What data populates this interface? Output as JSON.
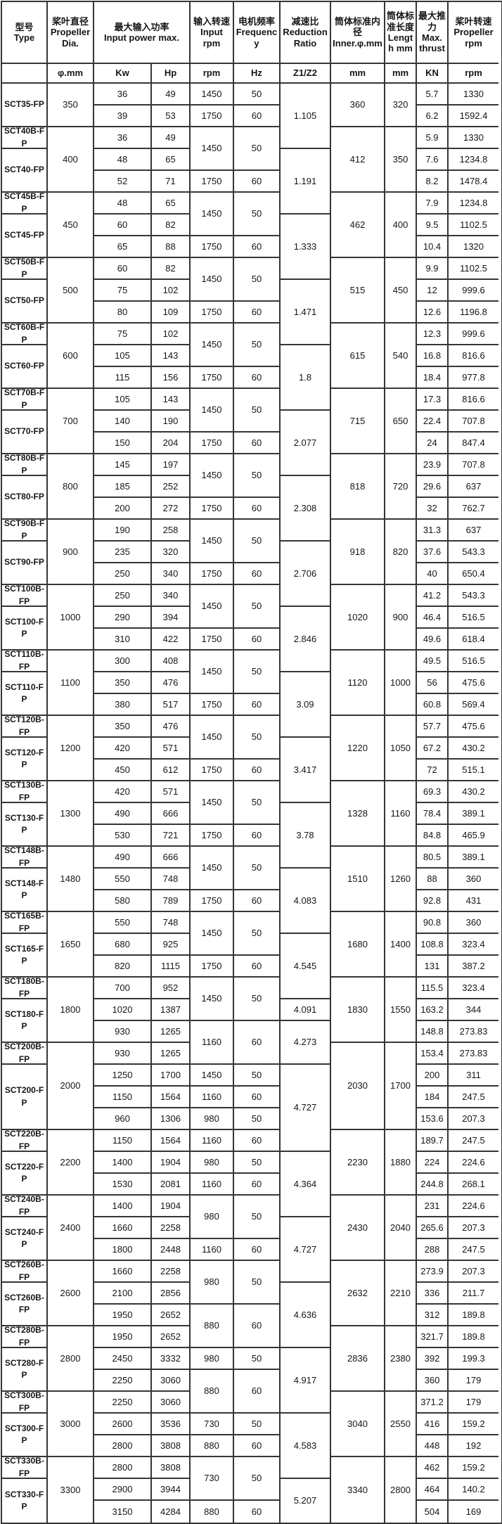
{
  "header": {
    "col_type": {
      "zh": "型号",
      "en": "Type"
    },
    "col_dia": {
      "zh": "桨叶直径",
      "en": "Propeller Dia.",
      "unit": "φ.mm"
    },
    "col_power": {
      "zh": "最大输入功率",
      "en": "Input power max.",
      "unit_kw": "Kw",
      "unit_hp": "Hp"
    },
    "col_rpm": {
      "zh": "输入转速",
      "en": "Input rpm",
      "unit": "rpm"
    },
    "col_freq": {
      "zh": "电机频率",
      "en": "Frequency",
      "unit": "Hz"
    },
    "col_ratio": {
      "zh": "减速比",
      "en": "Reduction Ratio",
      "unit": "Z1/Z2"
    },
    "col_inner": {
      "zh": "筒体标准内径",
      "en": "Inner.φ.mm",
      "unit": "mm"
    },
    "col_length": {
      "zh": "筒体标准长度",
      "en": "Length mm",
      "unit": "mm"
    },
    "col_thrust": {
      "zh": "最大推力",
      "en": "Max. thrust",
      "unit": "KN"
    },
    "col_proprpm": {
      "zh": "桨叶转速",
      "en": "Propeller rpm",
      "unit": "rpm"
    }
  },
  "table": {
    "rows": 66,
    "type_cells": [
      [
        1,
        2,
        "SCT35-FP"
      ],
      [
        3,
        1,
        "SCT40B-FP"
      ],
      [
        4,
        2,
        "SCT40-FP"
      ],
      [
        6,
        1,
        "SCT45B-FP"
      ],
      [
        7,
        2,
        "SCT45-FP"
      ],
      [
        9,
        1,
        "SCT50B-FP"
      ],
      [
        10,
        2,
        "SCT50-FP"
      ],
      [
        12,
        1,
        "SCT60B-FP"
      ],
      [
        13,
        2,
        "SCT60-FP"
      ],
      [
        15,
        1,
        "SCT70B-FP"
      ],
      [
        16,
        2,
        "SCT70-FP"
      ],
      [
        18,
        1,
        "SCT80B-FP"
      ],
      [
        19,
        2,
        "SCT80-FP"
      ],
      [
        21,
        1,
        "SCT90B-FP"
      ],
      [
        22,
        2,
        "SCT90-FP"
      ],
      [
        24,
        1,
        "SCT100B-FP"
      ],
      [
        25,
        2,
        "SCT100-FP"
      ],
      [
        27,
        1,
        "SCT110B-FP"
      ],
      [
        28,
        2,
        "SCT110-FP"
      ],
      [
        30,
        1,
        "SCT120B-FP"
      ],
      [
        31,
        2,
        "SCT120-FP"
      ],
      [
        33,
        1,
        "SCT130B-FP"
      ],
      [
        34,
        2,
        "SCT130-FP"
      ],
      [
        36,
        1,
        "SCT148B-FP"
      ],
      [
        37,
        2,
        "SCT148-FP"
      ],
      [
        39,
        1,
        "SCT165B-FP"
      ],
      [
        40,
        2,
        "SCT165-FP"
      ],
      [
        42,
        1,
        "SCT180B-FP"
      ],
      [
        43,
        2,
        "SCT180-FP"
      ],
      [
        45,
        1,
        "SCT200B-FP"
      ],
      [
        46,
        3,
        "SCT200-FP"
      ],
      [
        49,
        1,
        "SCT220B-FP"
      ],
      [
        50,
        2,
        "SCT220-FP"
      ],
      [
        52,
        1,
        "SCT240B-FP"
      ],
      [
        53,
        2,
        "SCT240-FP"
      ],
      [
        55,
        1,
        "SCT260B-FP"
      ],
      [
        56,
        2,
        "SCT260B-FP"
      ],
      [
        58,
        1,
        "SCT280B-FP"
      ],
      [
        59,
        2,
        "SCT280-FP"
      ],
      [
        61,
        1,
        "SCT300B-FP"
      ],
      [
        62,
        2,
        "SCT300-FP"
      ],
      [
        64,
        1,
        "SCT330B-FP"
      ],
      [
        65,
        2,
        "SCT330-FP"
      ]
    ],
    "dia_cells": [
      [
        1,
        2,
        "350"
      ],
      [
        3,
        3,
        "400"
      ],
      [
        6,
        3,
        "450"
      ],
      [
        9,
        3,
        "500"
      ],
      [
        12,
        3,
        "600"
      ],
      [
        15,
        3,
        "700"
      ],
      [
        18,
        3,
        "800"
      ],
      [
        21,
        3,
        "900"
      ],
      [
        24,
        3,
        "1000"
      ],
      [
        27,
        3,
        "1100"
      ],
      [
        30,
        3,
        "1200"
      ],
      [
        33,
        3,
        "1300"
      ],
      [
        36,
        3,
        "1480"
      ],
      [
        39,
        3,
        "1650"
      ],
      [
        42,
        3,
        "1800"
      ],
      [
        45,
        4,
        "2000"
      ],
      [
        49,
        3,
        "2200"
      ],
      [
        52,
        3,
        "2400"
      ],
      [
        55,
        3,
        "2600"
      ],
      [
        58,
        3,
        "2800"
      ],
      [
        61,
        3,
        "3000"
      ],
      [
        64,
        3,
        "3300"
      ]
    ],
    "kw": [
      "36",
      "39",
      "36",
      "48",
      "52",
      "48",
      "60",
      "65",
      "60",
      "75",
      "80",
      "75",
      "105",
      "115",
      "105",
      "140",
      "150",
      "145",
      "185",
      "200",
      "190",
      "235",
      "250",
      "250",
      "290",
      "310",
      "300",
      "350",
      "380",
      "350",
      "420",
      "450",
      "420",
      "490",
      "530",
      "490",
      "550",
      "580",
      "550",
      "680",
      "820",
      "700",
      "1020",
      "930",
      "930",
      "1250",
      "1150",
      "960",
      "1150",
      "1400",
      "1530",
      "1400",
      "1660",
      "1800",
      "1660",
      "2100",
      "1950",
      "1950",
      "2450",
      "2250",
      "2250",
      "2600",
      "2800",
      "2800",
      "2900",
      "3150"
    ],
    "hp": [
      "49",
      "53",
      "49",
      "65",
      "71",
      "65",
      "82",
      "88",
      "82",
      "102",
      "109",
      "102",
      "143",
      "156",
      "143",
      "190",
      "204",
      "197",
      "252",
      "272",
      "258",
      "320",
      "340",
      "340",
      "394",
      "422",
      "408",
      "476",
      "517",
      "476",
      "571",
      "612",
      "571",
      "666",
      "721",
      "666",
      "748",
      "789",
      "748",
      "925",
      "1115",
      "952",
      "1387",
      "1265",
      "1265",
      "1700",
      "1564",
      "1306",
      "1564",
      "1904",
      "2081",
      "1904",
      "2258",
      "2448",
      "2258",
      "2856",
      "2652",
      "2652",
      "3332",
      "3060",
      "3060",
      "3536",
      "3808",
      "3808",
      "3944",
      "4284"
    ],
    "rpm_hz_cells": [
      [
        1,
        1,
        "1450",
        "50"
      ],
      [
        2,
        1,
        "1750",
        "60"
      ],
      [
        3,
        2,
        "1450",
        "50"
      ],
      [
        5,
        1,
        "1750",
        "60"
      ],
      [
        6,
        2,
        "1450",
        "50"
      ],
      [
        8,
        1,
        "1750",
        "60"
      ],
      [
        9,
        2,
        "1450",
        "50"
      ],
      [
        11,
        1,
        "1750",
        "60"
      ],
      [
        12,
        2,
        "1450",
        "50"
      ],
      [
        14,
        1,
        "1750",
        "60"
      ],
      [
        15,
        2,
        "1450",
        "50"
      ],
      [
        17,
        1,
        "1750",
        "60"
      ],
      [
        18,
        2,
        "1450",
        "50"
      ],
      [
        20,
        1,
        "1750",
        "60"
      ],
      [
        21,
        2,
        "1450",
        "50"
      ],
      [
        23,
        1,
        "1750",
        "60"
      ],
      [
        24,
        2,
        "1450",
        "50"
      ],
      [
        26,
        1,
        "1750",
        "60"
      ],
      [
        27,
        2,
        "1450",
        "50"
      ],
      [
        29,
        1,
        "1750",
        "60"
      ],
      [
        30,
        2,
        "1450",
        "50"
      ],
      [
        32,
        1,
        "1750",
        "60"
      ],
      [
        33,
        2,
        "1450",
        "50"
      ],
      [
        35,
        1,
        "1750",
        "60"
      ],
      [
        36,
        2,
        "1450",
        "50"
      ],
      [
        38,
        1,
        "1750",
        "60"
      ],
      [
        39,
        2,
        "1450",
        "50"
      ],
      [
        41,
        1,
        "1750",
        "60"
      ],
      [
        42,
        2,
        "1450",
        "50"
      ],
      [
        44,
        2,
        "1160",
        "60"
      ],
      [
        46,
        1,
        "1450",
        "50"
      ],
      [
        47,
        1,
        "1160",
        "60"
      ],
      [
        48,
        1,
        "980",
        "50"
      ],
      [
        49,
        1,
        "1160",
        "60"
      ],
      [
        50,
        1,
        "980",
        "50"
      ],
      [
        51,
        1,
        "1160",
        "60"
      ],
      [
        52,
        2,
        "980",
        "50"
      ],
      [
        54,
        1,
        "1160",
        "60"
      ],
      [
        55,
        2,
        "980",
        "50"
      ],
      [
        57,
        2,
        "880",
        "60"
      ],
      [
        59,
        1,
        "980",
        "50"
      ],
      [
        60,
        2,
        "880",
        "60"
      ],
      [
        62,
        1,
        "730",
        "50"
      ],
      [
        63,
        1,
        "880",
        "60"
      ],
      [
        64,
        2,
        "730",
        "50"
      ],
      [
        66,
        1,
        "880",
        "60"
      ]
    ],
    "ratio_cells": [
      [
        1,
        3,
        "1.105"
      ],
      [
        4,
        3,
        "1.191"
      ],
      [
        7,
        3,
        "1.333"
      ],
      [
        10,
        3,
        "1.471"
      ],
      [
        13,
        3,
        "1.8"
      ],
      [
        16,
        3,
        "2.077"
      ],
      [
        19,
        3,
        "2.308"
      ],
      [
        22,
        3,
        "2.706"
      ],
      [
        25,
        3,
        "2.846"
      ],
      [
        28,
        3,
        "3.09"
      ],
      [
        31,
        3,
        "3.417"
      ],
      [
        34,
        3,
        "3.78"
      ],
      [
        37,
        3,
        "4.083"
      ],
      [
        40,
        3,
        "4.545"
      ],
      [
        43,
        1,
        "4.091"
      ],
      [
        44,
        2,
        "4.273"
      ],
      [
        46,
        4,
        "4.727"
      ],
      [
        50,
        3,
        "4.364"
      ],
      [
        53,
        3,
        "4.727"
      ],
      [
        56,
        3,
        "4.636"
      ],
      [
        59,
        3,
        "4.917"
      ],
      [
        62,
        3,
        "4.583"
      ],
      [
        65,
        2,
        "5.207"
      ]
    ],
    "inner_length_cells": [
      [
        1,
        2,
        "360",
        "320"
      ],
      [
        3,
        3,
        "412",
        "350"
      ],
      [
        6,
        3,
        "462",
        "400"
      ],
      [
        9,
        3,
        "515",
        "450"
      ],
      [
        12,
        3,
        "615",
        "540"
      ],
      [
        15,
        3,
        "715",
        "650"
      ],
      [
        18,
        3,
        "818",
        "720"
      ],
      [
        21,
        3,
        "918",
        "820"
      ],
      [
        24,
        3,
        "1020",
        "900"
      ],
      [
        27,
        3,
        "1120",
        "1000"
      ],
      [
        30,
        3,
        "1220",
        "1050"
      ],
      [
        33,
        3,
        "1328",
        "1160"
      ],
      [
        36,
        3,
        "1510",
        "1260"
      ],
      [
        39,
        3,
        "1680",
        "1400"
      ],
      [
        42,
        3,
        "1830",
        "1550"
      ],
      [
        45,
        4,
        "2030",
        "1700"
      ],
      [
        49,
        3,
        "2230",
        "1880"
      ],
      [
        52,
        3,
        "2430",
        "2040"
      ],
      [
        55,
        3,
        "2632",
        "2210"
      ],
      [
        58,
        3,
        "2836",
        "2380"
      ],
      [
        61,
        3,
        "3040",
        "2550"
      ],
      [
        64,
        3,
        "3340",
        "2800"
      ]
    ],
    "kn": [
      "5.7",
      "6.2",
      "5.9",
      "7.6",
      "8.2",
      "7.9",
      "9.5",
      "10.4",
      "9.9",
      "12",
      "12.6",
      "12.3",
      "16.8",
      "18.4",
      "17.3",
      "22.4",
      "24",
      "23.9",
      "29.6",
      "32",
      "31.3",
      "37.6",
      "40",
      "41.2",
      "46.4",
      "49.6",
      "49.5",
      "56",
      "60.8",
      "57.7",
      "67.2",
      "72",
      "69.3",
      "78.4",
      "84.8",
      "80.5",
      "88",
      "92.8",
      "90.8",
      "108.8",
      "131",
      "115.5",
      "163.2",
      "148.8",
      "153.4",
      "200",
      "184",
      "153.6",
      "189.7",
      "224",
      "244.8",
      "231",
      "265.6",
      "288",
      "273.9",
      "336",
      "312",
      "321.7",
      "392",
      "360",
      "371.2",
      "416",
      "448",
      "462",
      "464",
      "504"
    ],
    "prop_rpm": [
      "1330",
      "1592.4",
      "1330",
      "1234.8",
      "1478.4",
      "1234.8",
      "1102.5",
      "1320",
      "1102.5",
      "999.6",
      "1196.8",
      "999.6",
      "816.6",
      "977.8",
      "816.6",
      "707.8",
      "847.4",
      "707.8",
      "637",
      "762.7",
      "637",
      "543.3",
      "650.4",
      "543.3",
      "516.5",
      "618.4",
      "516.5",
      "475.6",
      "569.4",
      "475.6",
      "430.2",
      "515.1",
      "430.2",
      "389.1",
      "465.9",
      "389.1",
      "360",
      "431",
      "360",
      "323.4",
      "387.2",
      "323.4",
      "344",
      "273.83",
      "273.83",
      "311",
      "247.5",
      "207.3",
      "247.5",
      "224.6",
      "268.1",
      "224.6",
      "207.3",
      "247.5",
      "207.3",
      "211.7",
      "189.8",
      "189.8",
      "199.3",
      "179",
      "179",
      "159.2",
      "192",
      "159.2",
      "140.2",
      "169"
    ]
  }
}
